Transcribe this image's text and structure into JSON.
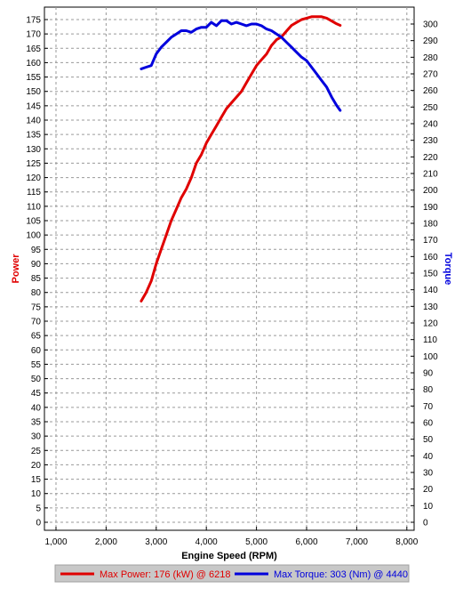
{
  "chart_data": {
    "type": "line",
    "xlabel": "Engine Speed (RPM)",
    "ylabel_left": "Power",
    "ylabel_right": "Torque",
    "xlim": [
      1000,
      8000
    ],
    "ylim_left": [
      0,
      175
    ],
    "ylim_right": [
      0,
      300
    ],
    "x_ticks": [
      1000,
      2000,
      3000,
      4000,
      5000,
      6000,
      7000,
      8000
    ],
    "x_tick_labels": [
      "1,000",
      "2,000",
      "3,000",
      "4,000",
      "5,000",
      "6,000",
      "7,000",
      "8,000"
    ],
    "y_left_ticks": [
      0,
      5,
      10,
      15,
      20,
      25,
      30,
      35,
      40,
      45,
      50,
      55,
      60,
      65,
      70,
      75,
      80,
      85,
      90,
      95,
      100,
      105,
      110,
      115,
      120,
      125,
      130,
      135,
      140,
      145,
      150,
      155,
      160,
      165,
      170,
      175
    ],
    "y_right_ticks": [
      0,
      10,
      20,
      30,
      40,
      50,
      60,
      70,
      80,
      90,
      100,
      110,
      120,
      130,
      140,
      150,
      160,
      170,
      180,
      190,
      200,
      210,
      220,
      230,
      240,
      250,
      260,
      270,
      280,
      290,
      300
    ],
    "grid": true,
    "series": [
      {
        "name": "Power",
        "axis": "left",
        "color": "#e00000",
        "x": [
          2700,
          2800,
          2900,
          3000,
          3100,
          3200,
          3300,
          3400,
          3500,
          3600,
          3700,
          3800,
          3900,
          4000,
          4100,
          4200,
          4300,
          4400,
          4500,
          4600,
          4700,
          4800,
          4900,
          5000,
          5100,
          5200,
          5300,
          5400,
          5500,
          5600,
          5700,
          5800,
          5900,
          6000,
          6100,
          6200,
          6300,
          6400,
          6500,
          6600,
          6670
        ],
        "values": [
          77,
          80,
          84,
          90,
          95,
          100,
          105,
          109,
          113,
          116,
          120,
          125,
          128,
          132,
          135,
          138,
          141,
          144,
          146,
          148,
          150,
          153,
          156,
          159,
          161,
          163,
          166,
          168,
          169,
          171,
          173,
          174,
          175,
          175.5,
          176,
          176,
          176,
          175.5,
          174.5,
          173.5,
          173
        ]
      },
      {
        "name": "Torque",
        "axis": "right",
        "color": "#0000dd",
        "x": [
          2700,
          2800,
          2900,
          3000,
          3100,
          3200,
          3300,
          3400,
          3500,
          3600,
          3700,
          3800,
          3900,
          4000,
          4100,
          4200,
          4300,
          4400,
          4500,
          4600,
          4700,
          4800,
          4900,
          5000,
          5100,
          5200,
          5300,
          5400,
          5500,
          5600,
          5700,
          5800,
          5900,
          6000,
          6100,
          6200,
          6300,
          6400,
          6500,
          6600,
          6670
        ],
        "values": [
          273,
          274,
          275,
          282,
          286,
          289,
          292,
          294,
          296,
          296,
          295,
          297,
          298,
          298,
          301,
          299,
          302,
          302,
          300,
          301,
          300,
          299,
          300,
          300,
          299,
          297,
          296,
          294,
          292,
          289,
          286,
          283,
          280,
          278,
          274,
          270,
          266,
          262,
          256,
          251,
          248
        ]
      }
    ],
    "legend": {
      "placement": "bottom",
      "entries": [
        {
          "text": "Max Power: 176 (kW) @ 6218",
          "color": "#e00000"
        },
        {
          "text": "Max Torque: 303 (Nm) @ 4440",
          "color": "#0000dd"
        }
      ]
    }
  }
}
